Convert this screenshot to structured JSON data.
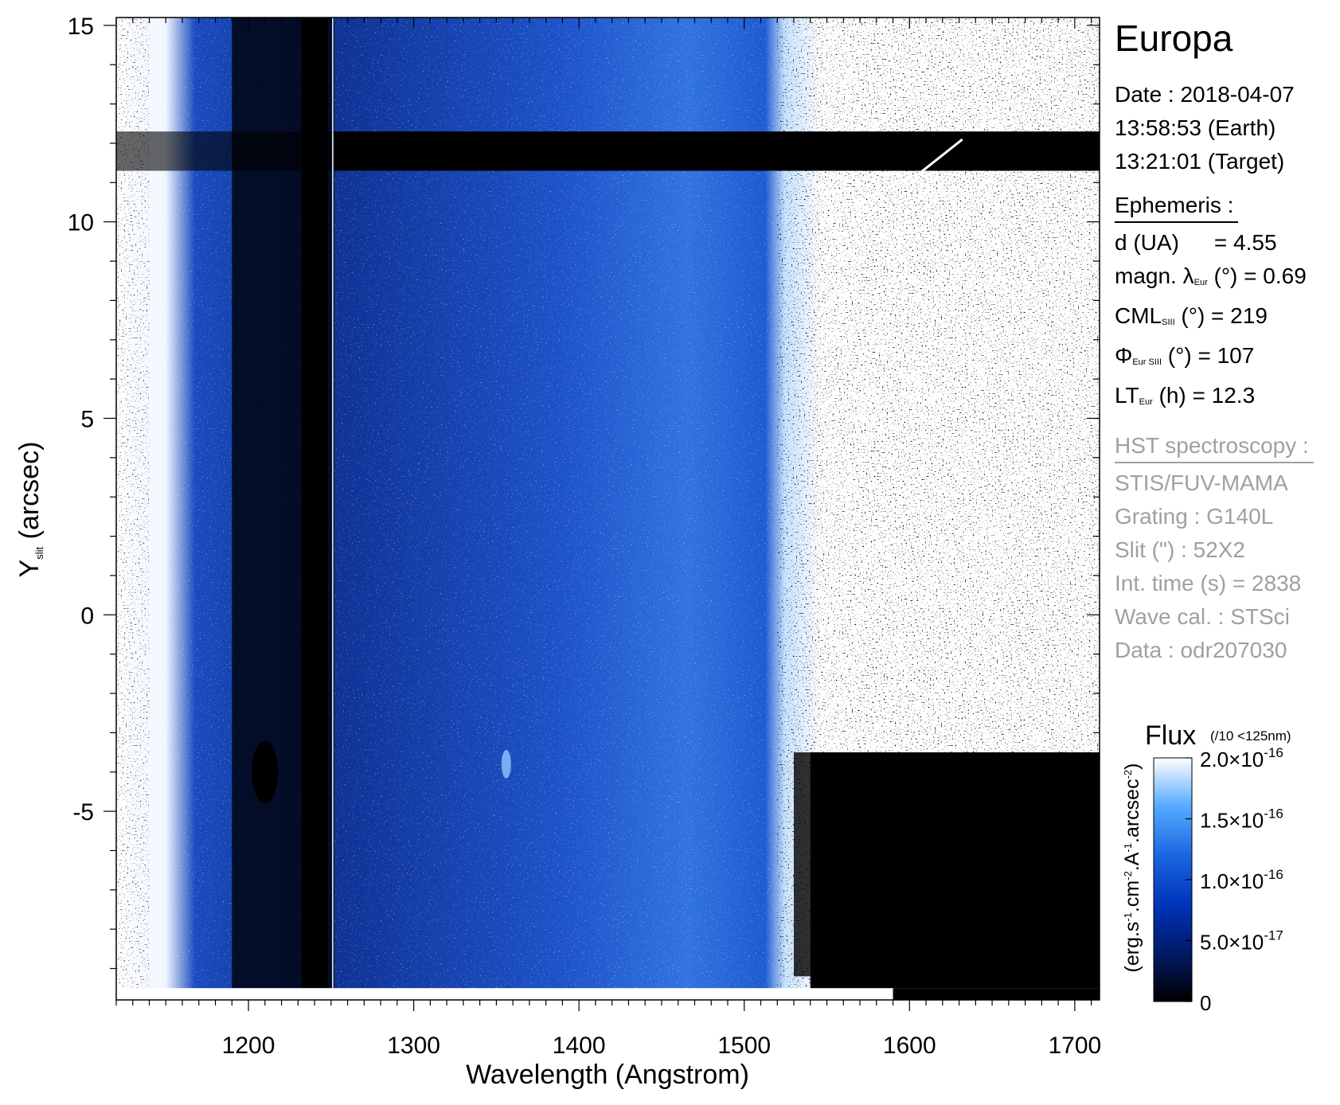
{
  "panel": {
    "title": "Europa",
    "date_line": "Date : 2018-04-07",
    "time_earth": "13:58:53 (Earth)",
    "time_target": "13:21:01 (Target)",
    "ephemeris_header": "Ephemeris :",
    "ephemeris": [
      {
        "label": "d (UA)",
        "sub": "",
        "unit": "",
        "value": "= 4.55"
      },
      {
        "label": "magn. λ",
        "sub": "Eur",
        "unit": " (°)",
        "value": "= 0.69"
      },
      {
        "label": "CML",
        "sub": "SIII",
        "unit": " (°)",
        "value": "= 219"
      },
      {
        "label": "Φ",
        "sub": "Eur SIII",
        "unit": " (°)",
        "value": "= 107"
      },
      {
        "label": "LT",
        "sub": "Eur",
        "unit": " (h)",
        "value": "= 12.3"
      }
    ],
    "hst_header": "HST spectroscopy :",
    "hst": [
      "STIS/FUV-MAMA",
      "Grating : G140L",
      "Slit (\") : 52X2",
      "Int. time (s) = 2838",
      "Wave cal. : STSci",
      "Data : odr207030"
    ]
  },
  "colorbar": {
    "title": "Flux",
    "note": "(/10 <125nm)",
    "label": "(erg.s-1.cm-2.A-1.arcsec-2)",
    "range": [
      0,
      2e-16
    ],
    "ticks": [
      {
        "value": 2e-16,
        "label": "2.0×10",
        "exp": "-16"
      },
      {
        "value": 1.5e-16,
        "label": "1.5×10",
        "exp": "-16"
      },
      {
        "value": 1e-16,
        "label": "1.0×10",
        "exp": "-16"
      },
      {
        "value": 5e-17,
        "label": "5.0×10",
        "exp": "-17"
      },
      {
        "value": 0,
        "label": "0",
        "exp": ""
      }
    ],
    "colors": [
      "#000000",
      "#001a66",
      "#0033bb",
      "#1a66e0",
      "#55aaff",
      "#d8ecff",
      "#ffffff"
    ]
  },
  "chart_data": {
    "type": "heatmap",
    "title": "",
    "xlabel": "Wavelength (Angstrom)",
    "ylabel": "Y",
    "ylabel_sub": "slit",
    "ylabel_unit": " (arcsec)",
    "xlim": [
      1120,
      1715
    ],
    "ylim": [
      -9.8,
      15.2
    ],
    "x_ticks": [
      1200,
      1300,
      1400,
      1500,
      1600,
      1700
    ],
    "x_minor_step": 10,
    "y_ticks": [
      -5,
      0,
      5,
      10,
      15
    ],
    "y_minor_step": 1,
    "features": {
      "lyman_alpha_gap_x": [
        1190,
        1252
      ],
      "dark_column_x": [
        1232,
        1248
      ],
      "separator_x": 1251,
      "dark_row_y": [
        11.3,
        12.3
      ],
      "bright_region_x_start": 1520,
      "detector_bottom_y": -9.5,
      "lower_right_dark_region": {
        "x": [
          1540,
          1715
        ],
        "y": [
          -9.8,
          -3.5
        ]
      },
      "blob": {
        "x": 1210,
        "y": -4
      },
      "spot": {
        "x": 1356,
        "y": -3.8
      }
    },
    "annotation_line": {
      "x": [
        1605,
        1632
      ],
      "y": [
        11.2,
        12.1
      ]
    }
  }
}
